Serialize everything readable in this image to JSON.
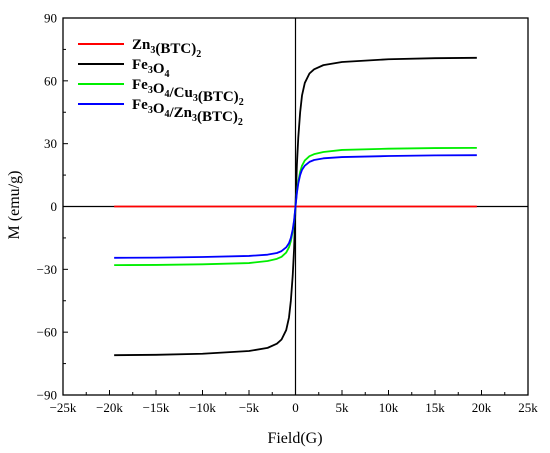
{
  "chart_data": {
    "type": "line",
    "title": "",
    "xlabel": "Field(G)",
    "ylabel": "M (emu/g)",
    "xlim": [
      -25000,
      25000
    ],
    "ylim": [
      -90,
      90
    ],
    "xticks": [
      -25000,
      -20000,
      -15000,
      -10000,
      -5000,
      0,
      5000,
      10000,
      15000,
      20000,
      25000
    ],
    "xtick_labels": [
      "−25k",
      "−20k",
      "−15k",
      "−10k",
      "−5k",
      "0",
      "5k",
      "10k",
      "15k",
      "20k",
      "25k"
    ],
    "yticks": [
      -90,
      -60,
      -30,
      0,
      30,
      60,
      90
    ],
    "ytick_labels": [
      "−90",
      "−60",
      "−30",
      "0",
      "30",
      "60",
      "90"
    ],
    "grid": false,
    "legend": "top-left",
    "zero_lines": true,
    "series": [
      {
        "name": "Zn3(BTC)2",
        "legend_parts": [
          [
            "Zn",
            ""
          ],
          [
            "3",
            "sub"
          ],
          [
            "(BTC)",
            ""
          ],
          [
            "2",
            "sub"
          ]
        ],
        "color": "#ff0000",
        "x": [
          -19500,
          0,
          19500
        ],
        "y": [
          0,
          0,
          0
        ]
      },
      {
        "name": "Fe3O4",
        "legend_parts": [
          [
            "Fe",
            ""
          ],
          [
            "3",
            "sub"
          ],
          [
            "O",
            ""
          ],
          [
            "4",
            "sub"
          ]
        ],
        "color": "#000000",
        "x": [
          -19500,
          -15000,
          -10000,
          -5000,
          -3000,
          -2000,
          -1500,
          -1000,
          -700,
          -500,
          -300,
          -150,
          0,
          150,
          300,
          500,
          700,
          1000,
          1500,
          2000,
          3000,
          5000,
          10000,
          15000,
          19500
        ],
        "y": [
          -71,
          -70.8,
          -70.3,
          -69,
          -67.5,
          -65.5,
          -63.5,
          -59,
          -53,
          -45,
          -33,
          -20,
          0,
          20,
          33,
          45,
          53,
          59,
          63.5,
          65.5,
          67.5,
          69,
          70.3,
          70.8,
          71
        ]
      },
      {
        "name": "Fe3O4/Cu3(BTC)2",
        "legend_parts": [
          [
            "Fe",
            ""
          ],
          [
            "3",
            "sub"
          ],
          [
            "O",
            ""
          ],
          [
            "4",
            "sub"
          ],
          [
            "/Cu",
            ""
          ],
          [
            "3",
            "sub"
          ],
          [
            "(BTC)",
            ""
          ],
          [
            "2",
            "sub"
          ]
        ],
        "color": "#00ee00",
        "x": [
          -19500,
          -15000,
          -10000,
          -5000,
          -3000,
          -2000,
          -1500,
          -1000,
          -700,
          -500,
          -300,
          -150,
          0,
          150,
          300,
          500,
          700,
          1000,
          1500,
          2000,
          3000,
          5000,
          10000,
          15000,
          19500
        ],
        "y": [
          -28,
          -27.9,
          -27.6,
          -27,
          -26,
          -25,
          -24,
          -22,
          -19.5,
          -16.5,
          -12,
          -7,
          0,
          7,
          12,
          16.5,
          19.5,
          22,
          24,
          25,
          26,
          27,
          27.6,
          27.9,
          28
        ]
      },
      {
        "name": "Fe3O4/Zn3(BTC)2",
        "legend_parts": [
          [
            "Fe",
            ""
          ],
          [
            "3",
            "sub"
          ],
          [
            "O",
            ""
          ],
          [
            "4",
            "sub"
          ],
          [
            "/Zn",
            ""
          ],
          [
            "3",
            "sub"
          ],
          [
            "(BTC)",
            ""
          ],
          [
            "2",
            "sub"
          ]
        ],
        "color": "#0000ff",
        "x": [
          -19500,
          -15000,
          -10000,
          -5000,
          -3000,
          -2000,
          -1500,
          -1000,
          -700,
          -500,
          -300,
          -150,
          0,
          150,
          300,
          500,
          700,
          1000,
          1500,
          2000,
          3000,
          5000,
          10000,
          15000,
          19500
        ],
        "y": [
          -24.5,
          -24.4,
          -24.1,
          -23.6,
          -23,
          -22.2,
          -21.3,
          -19.5,
          -17.5,
          -15,
          -11,
          -6.5,
          0,
          6.5,
          11,
          15,
          17.5,
          19.5,
          21.3,
          22.2,
          23,
          23.6,
          24.1,
          24.4,
          24.5
        ]
      }
    ]
  }
}
